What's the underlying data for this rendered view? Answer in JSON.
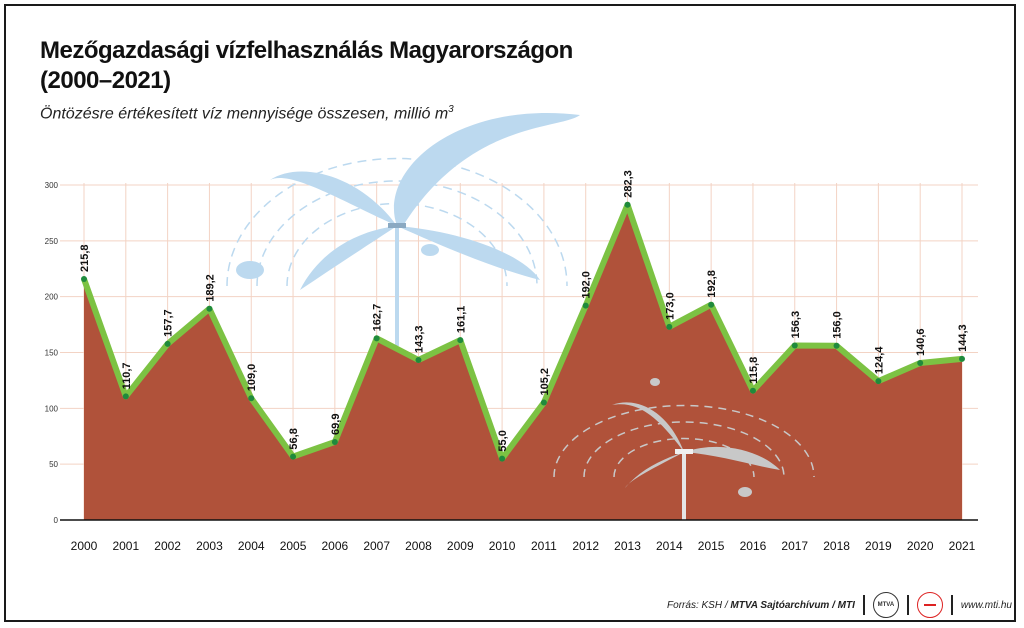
{
  "title_line1": "Mezőgazdasági vízfelhasználás Magyarországon",
  "title_line2": "(2000–2021)",
  "subtitle": "Öntözésre értékesített víz mennyisége összesen, millió m",
  "subtitle_sup": "3",
  "footer": {
    "source_prefix": "Forrás: KSH / ",
    "source_bold": "MTVA Sajtóarchívum / MTI",
    "mtva_logo_text": "MTVA",
    "url": "www.mti.hu"
  },
  "chart_data": {
    "type": "area",
    "x": [
      "2000",
      "2001",
      "2002",
      "2003",
      "2004",
      "2005",
      "2006",
      "2007",
      "2008",
      "2009",
      "2010",
      "2011",
      "2012",
      "2013",
      "2014",
      "2015",
      "2016",
      "2017",
      "2018",
      "2019",
      "2020",
      "2021"
    ],
    "values": [
      215.8,
      110.7,
      157.7,
      189.2,
      109.0,
      56.8,
      69.9,
      162.7,
      143.3,
      161.1,
      55.0,
      105.2,
      192.0,
      282.3,
      173.0,
      192.8,
      115.8,
      156.3,
      156.0,
      124.4,
      140.6,
      144.3
    ],
    "value_labels": [
      "215,8",
      "110,7",
      "157,7",
      "189,2",
      "109,0",
      "56,8",
      "69,9",
      "162,7",
      "143,3",
      "161,1",
      "55,0",
      "105,2",
      "192,0",
      "282,3",
      "173,0",
      "192,8",
      "115,8",
      "156,3",
      "156,0",
      "124,4",
      "140,6",
      "144,3"
    ],
    "yticks": [
      0,
      50,
      100,
      150,
      200,
      250,
      300
    ],
    "ylim": [
      0,
      300
    ],
    "grid": true,
    "colors": {
      "area": "#b0523a",
      "line": "#7cc243",
      "point": "#1f8a3c",
      "grid": "#f3d3c4",
      "illustration": "#bcd9ef",
      "illustration_gray": "#c8c8c8"
    }
  }
}
